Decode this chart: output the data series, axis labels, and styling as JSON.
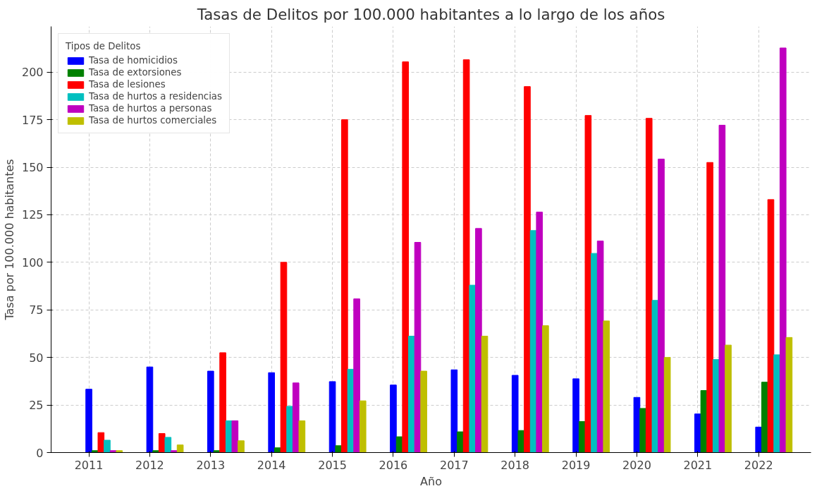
{
  "chart_data": {
    "type": "bar",
    "title": "Tasas de Delitos por 100.000 habitantes a lo largo de los años",
    "xlabel": "Año",
    "ylabel": "Tasa por 100.000 habitantes",
    "legend_title": "Tipos de Delitos",
    "legend": "top left",
    "grid": true,
    "categories": [
      "2011",
      "2012",
      "2013",
      "2014",
      "2015",
      "2016",
      "2017",
      "2018",
      "2019",
      "2020",
      "2021",
      "2022"
    ],
    "ylim": [
      0,
      224
    ],
    "yticks": [
      0,
      25,
      50,
      75,
      100,
      125,
      150,
      175,
      200
    ],
    "series": [
      {
        "name": "Tasa de homicidios",
        "color": "#0000ff",
        "values": [
          33.3,
          45,
          42.8,
          42,
          37.3,
          35.5,
          43.5,
          40.6,
          38.8,
          29,
          20.3,
          13.4
        ]
      },
      {
        "name": "Tasa de extorsiones",
        "color": "#008000",
        "values": [
          1,
          1,
          1,
          2.5,
          3.6,
          8.3,
          10.9,
          11.6,
          16.3,
          23.2,
          32.6,
          37
        ]
      },
      {
        "name": "Tasa de lesiones",
        "color": "#ff0000",
        "values": [
          10.5,
          10,
          52.5,
          100,
          175,
          205.4,
          206.5,
          192.4,
          177.2,
          175.7,
          152.5,
          133
        ]
      },
      {
        "name": "Tasa de hurtos a residencias",
        "color": "#00bfbf",
        "values": [
          6.5,
          8,
          16.7,
          24.3,
          43.8,
          61.2,
          88,
          116.7,
          104.7,
          80,
          48.9,
          51.4
        ]
      },
      {
        "name": "Tasa de hurtos a personas",
        "color": "#bf00bf",
        "values": [
          1,
          1,
          16.7,
          36.6,
          80.8,
          110.5,
          117.8,
          126.4,
          111.2,
          154.3,
          172.1,
          212.7
        ]
      },
      {
        "name": "Tasa de hurtos comerciales",
        "color": "#bfbf00",
        "values": [
          1,
          4,
          6.2,
          16.7,
          27.2,
          42.8,
          61.2,
          66.7,
          69.2,
          50,
          56.5,
          60.5
        ]
      }
    ]
  }
}
